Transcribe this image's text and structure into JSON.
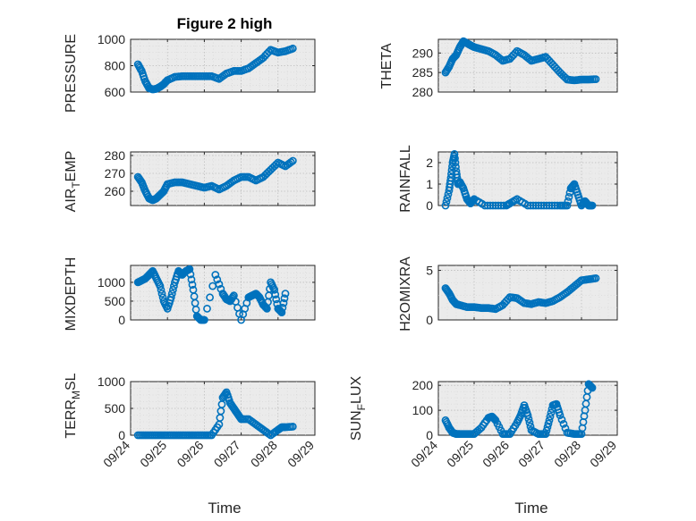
{
  "figure": {
    "title": "Figure 2 high",
    "marker_color": "#0072BD",
    "x_tick_labels": [
      "09/24",
      "09/25",
      "09/26",
      "09/27",
      "09/28",
      "09/29"
    ],
    "x_axis_label": "Time"
  },
  "chart_data": [
    {
      "type": "scatter",
      "title": "Figure 2 high",
      "ylabel": "PRESSURE",
      "ylim": [
        600,
        1000
      ],
      "yticks": [
        600,
        800,
        1000
      ],
      "ytick_labels": [
        "600",
        "800",
        "1000"
      ],
      "x": [
        24.2,
        24.3,
        24.4,
        24.5,
        24.6,
        24.7,
        24.8,
        24.9,
        25.0,
        25.2,
        25.4,
        25.6,
        25.8,
        26.0,
        26.2,
        26.4,
        26.6,
        26.8,
        27.0,
        27.2,
        27.4,
        27.6,
        27.8,
        28.0,
        28.2,
        28.4
      ],
      "y": [
        810,
        760,
        680,
        630,
        620,
        625,
        640,
        660,
        690,
        715,
        720,
        720,
        720,
        720,
        720,
        700,
        740,
        760,
        760,
        780,
        820,
        860,
        920,
        900,
        910,
        930
      ]
    },
    {
      "type": "scatter",
      "ylabel": "THETA",
      "ylim": [
        280,
        293.5
      ],
      "yticks": [
        280,
        285,
        290
      ],
      "ytick_labels": [
        "280",
        "285",
        "290"
      ],
      "x": [
        24.2,
        24.3,
        24.4,
        24.5,
        24.6,
        24.7,
        24.8,
        24.9,
        25.0,
        25.2,
        25.4,
        25.6,
        25.8,
        26.0,
        26.2,
        26.4,
        26.6,
        26.8,
        27.0,
        27.2,
        27.4,
        27.6,
        27.8,
        28.0,
        28.2,
        28.4
      ],
      "y": [
        285,
        286.5,
        288.5,
        289.5,
        291.5,
        293,
        292.5,
        292,
        291.5,
        291,
        290.5,
        289.5,
        288,
        288.5,
        290.5,
        289.5,
        288,
        288.5,
        289,
        287,
        285,
        283.2,
        283,
        283.2,
        283.2,
        283.3
      ]
    },
    {
      "type": "scatter",
      "ylabel": "AIR_TEMP",
      "ylim": [
        252,
        282
      ],
      "yticks": [
        260,
        270,
        280
      ],
      "ytick_labels": [
        "260",
        "270",
        "280"
      ],
      "x": [
        24.2,
        24.3,
        24.4,
        24.5,
        24.6,
        24.7,
        24.8,
        24.9,
        25.0,
        25.2,
        25.4,
        25.6,
        25.8,
        26.0,
        26.2,
        26.4,
        26.6,
        26.8,
        27.0,
        27.2,
        27.4,
        27.6,
        27.8,
        28.0,
        28.2,
        28.4
      ],
      "y": [
        268,
        265,
        260,
        256,
        255,
        256,
        258,
        260,
        264,
        265,
        265,
        264,
        263,
        262,
        263,
        261,
        263,
        266,
        268,
        268,
        266,
        268,
        272,
        276,
        274,
        277
      ]
    },
    {
      "type": "scatter",
      "ylabel": "RAINFALL",
      "ylim": [
        0,
        2.5
      ],
      "yticks": [
        0,
        1,
        2
      ],
      "ytick_labels": [
        "0",
        "1",
        "2"
      ],
      "x": [
        24.2,
        24.3,
        24.35,
        24.4,
        24.45,
        24.5,
        24.55,
        24.6,
        24.7,
        24.8,
        24.9,
        25.0,
        25.3,
        25.6,
        25.9,
        26.0,
        26.2,
        26.5,
        26.8,
        27.1,
        27.4,
        27.6,
        27.7,
        27.8,
        27.9,
        28.0,
        28.1,
        28.2,
        28.3
      ],
      "y": [
        0,
        0.7,
        1.3,
        2.0,
        2.4,
        1.6,
        1.0,
        1.1,
        0.8,
        0.3,
        0.1,
        0.3,
        0,
        0,
        0,
        0.1,
        0.3,
        0,
        0,
        0,
        0,
        0,
        0.8,
        1.0,
        0.5,
        0,
        0.2,
        0,
        0
      ]
    },
    {
      "type": "scatter",
      "ylabel": "MIXDEPTH",
      "ylim": [
        0,
        1450
      ],
      "yticks": [
        0,
        500,
        1000
      ],
      "ytick_labels": [
        "0",
        "500",
        "1000"
      ],
      "x": [
        24.2,
        24.3,
        24.4,
        24.5,
        24.6,
        24.7,
        24.8,
        24.9,
        25.0,
        25.1,
        25.2,
        25.3,
        25.4,
        25.5,
        25.6,
        25.7,
        25.8,
        25.9,
        26.0,
        26.3,
        26.5,
        26.6,
        26.7,
        26.8,
        27.0,
        27.2,
        27.3,
        27.4,
        27.5,
        27.6,
        27.7,
        27.8,
        27.9,
        28.0,
        28.1,
        28.2
      ],
      "y": [
        1000,
        1050,
        1100,
        1200,
        1300,
        1100,
        900,
        500,
        300,
        600,
        1000,
        1300,
        1200,
        1300,
        1350,
        800,
        100,
        0,
        0,
        1200,
        700,
        550,
        500,
        650,
        0,
        600,
        650,
        700,
        600,
        400,
        300,
        1000,
        800,
        300,
        200,
        700
      ]
    },
    {
      "type": "scatter",
      "ylabel": "H2OMIXRA",
      "ylim": [
        0,
        5.5
      ],
      "yticks": [
        0,
        5
      ],
      "ytick_labels": [
        "0",
        "5"
      ],
      "x": [
        24.2,
        24.3,
        24.4,
        24.5,
        24.6,
        24.8,
        25.0,
        25.2,
        25.4,
        25.6,
        25.8,
        26.0,
        26.2,
        26.4,
        26.6,
        26.8,
        27.0,
        27.2,
        27.4,
        27.6,
        27.8,
        28.0,
        28.2,
        28.4
      ],
      "y": [
        3.2,
        2.7,
        2.0,
        1.6,
        1.5,
        1.3,
        1.3,
        1.2,
        1.2,
        1.1,
        1.5,
        2.3,
        2.2,
        1.7,
        1.6,
        1.8,
        1.7,
        1.9,
        2.3,
        2.8,
        3.4,
        4.0,
        4.1,
        4.2
      ]
    },
    {
      "type": "scatter",
      "ylabel": "TERR_MSL",
      "ylim": [
        0,
        1000
      ],
      "yticks": [
        0,
        500,
        1000
      ],
      "ytick_labels": [
        "0",
        "500",
        "1000"
      ],
      "x": [
        24.2,
        24.4,
        24.6,
        24.8,
        25.0,
        25.2,
        25.4,
        25.6,
        25.8,
        26.0,
        26.2,
        26.4,
        26.5,
        26.6,
        26.7,
        26.8,
        26.9,
        27.0,
        27.2,
        27.4,
        27.6,
        27.8,
        28.0,
        28.1,
        28.2,
        28.4
      ],
      "y": [
        0,
        0,
        0,
        0,
        0,
        0,
        0,
        0,
        0,
        0,
        0,
        200,
        700,
        800,
        600,
        500,
        400,
        300,
        300,
        200,
        100,
        0,
        100,
        150,
        150,
        160
      ]
    },
    {
      "type": "scatter",
      "ylabel": "SUN_FLUX",
      "ylim": [
        0,
        215
      ],
      "yticks": [
        0,
        100,
        200
      ],
      "ytick_labels": [
        "0",
        "100",
        "200"
      ],
      "x": [
        24.2,
        24.3,
        24.4,
        24.5,
        24.6,
        24.8,
        25.0,
        25.2,
        25.4,
        25.5,
        25.6,
        25.8,
        26.0,
        26.2,
        26.3,
        26.4,
        26.5,
        26.6,
        26.8,
        27.0,
        27.1,
        27.2,
        27.3,
        27.4,
        27.6,
        27.8,
        28.0,
        28.1,
        28.2,
        28.3
      ],
      "y": [
        60,
        30,
        10,
        5,
        5,
        5,
        5,
        30,
        70,
        75,
        60,
        5,
        5,
        50,
        80,
        120,
        80,
        20,
        5,
        5,
        60,
        120,
        125,
        80,
        10,
        5,
        5,
        100,
        205,
        190
      ]
    }
  ]
}
